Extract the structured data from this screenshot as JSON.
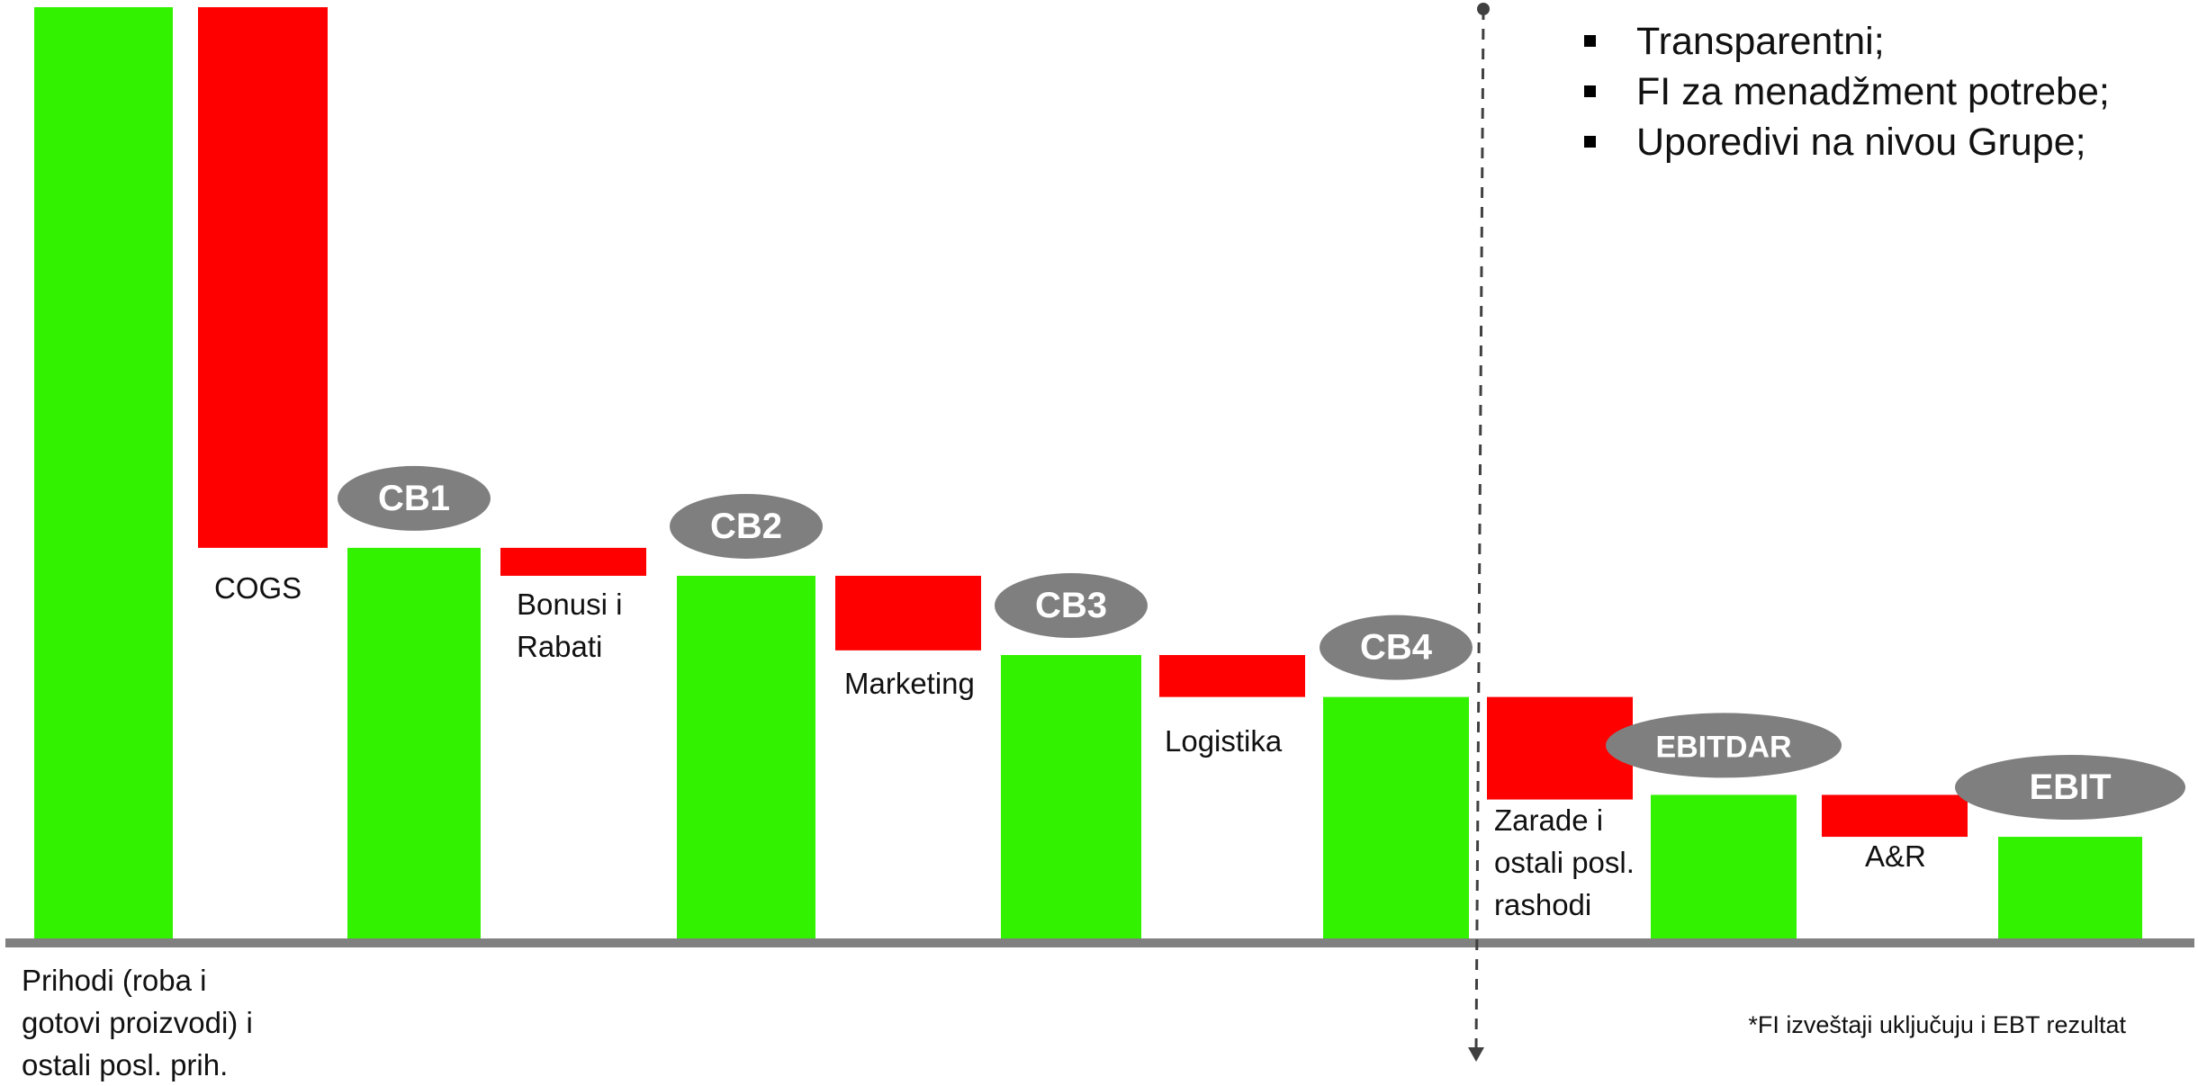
{
  "chart_data": {
    "type": "bar",
    "subtype": "waterfall",
    "y_axis_shown": false,
    "grid": false,
    "value_units": "relative (no axis printed; values estimated from bar heights)",
    "steps": [
      {
        "label": "Prihodi (roba i\ngotovi proizvodi) i\nostali posl. prih.",
        "kind": "total",
        "value": 100,
        "color": "#33f200"
      },
      {
        "label": "COGS",
        "kind": "decrease",
        "value": 58,
        "color": "#ff0000"
      },
      {
        "label": "",
        "badge": "CB1",
        "kind": "total",
        "value": 42,
        "color": "#33f200"
      },
      {
        "label": "Bonusi i\nRabati",
        "kind": "decrease",
        "value": 3,
        "color": "#ff0000"
      },
      {
        "label": "",
        "badge": "CB2",
        "kind": "total",
        "value": 39,
        "color": "#33f200"
      },
      {
        "label": "Marketing",
        "kind": "decrease",
        "value": 8,
        "color": "#ff0000"
      },
      {
        "label": "",
        "badge": "CB3",
        "kind": "total",
        "value": 30.5,
        "color": "#33f200"
      },
      {
        "label": "Logistika",
        "kind": "decrease",
        "value": 4.5,
        "color": "#ff0000"
      },
      {
        "label": "",
        "badge": "CB4",
        "kind": "total",
        "value": 26,
        "color": "#33f200"
      },
      {
        "label": "Zarade i\nostali posl.\nrashodi",
        "kind": "decrease",
        "value": 11,
        "color": "#ff0000"
      },
      {
        "label": "",
        "badge": "EBITDAR",
        "kind": "total",
        "value": 15.5,
        "color": "#33f200"
      },
      {
        "label": "A&R",
        "kind": "decrease",
        "value": 4.5,
        "color": "#ff0000"
      },
      {
        "label": "",
        "badge": "EBIT",
        "kind": "total",
        "value": 11,
        "color": "#33f200"
      }
    ]
  },
  "bullets": [
    "Transparentni;",
    "FI za menadžment potrebe;",
    "Uporedivi na nivou Grupe;"
  ],
  "footnote": "*FI izveštaji uključuju i EBT rezultat",
  "colors": {
    "increase_total": "#33f200",
    "decrease": "#ff0000",
    "badge": "#7f7f7f",
    "baseline": "#808080",
    "divider": "#404040"
  }
}
